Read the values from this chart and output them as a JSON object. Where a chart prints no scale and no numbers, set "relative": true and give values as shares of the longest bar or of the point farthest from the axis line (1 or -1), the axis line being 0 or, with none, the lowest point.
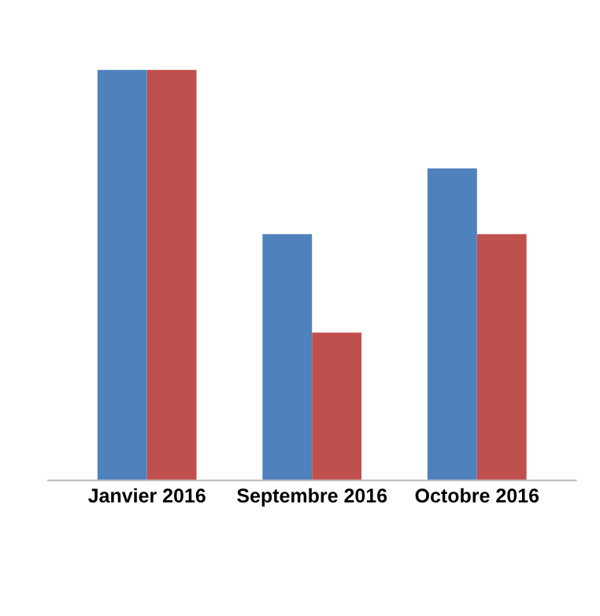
{
  "chart_data": {
    "type": "bar",
    "relative": true,
    "tick_labels": "x",
    "categories": [
      "Janvier 2016",
      "Septembre 2016",
      "Octobre 2016"
    ],
    "series": [
      {
        "color": "#4f81bd",
        "values": [
          1,
          0.6,
          0.76
        ]
      },
      {
        "color": "#c0504d",
        "values": [
          1,
          0.36,
          0.6
        ]
      }
    ]
  }
}
